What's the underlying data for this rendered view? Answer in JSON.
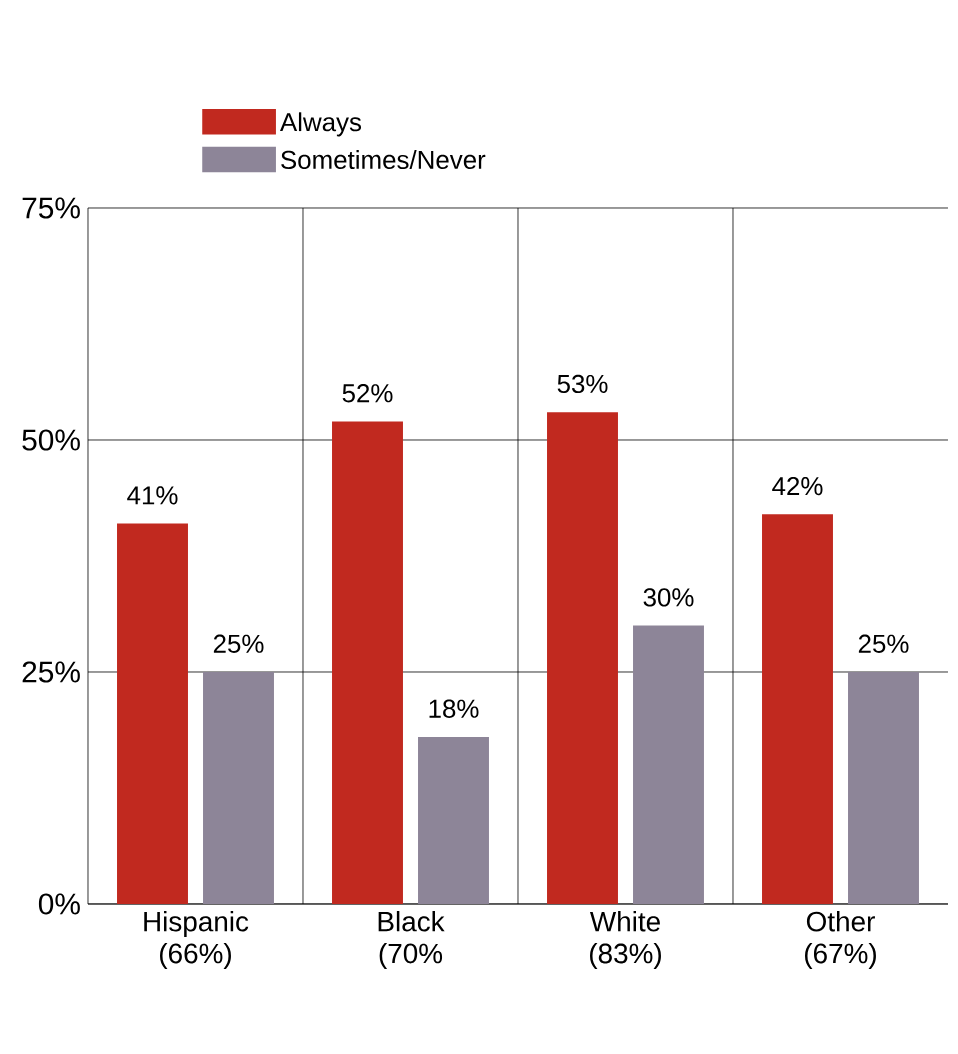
{
  "chart_data": {
    "type": "bar",
    "categories": [
      "Hispanic (66%)",
      "Black (70%",
      "White (83%)",
      "Other (67%)"
    ],
    "series": [
      {
        "name": "Always",
        "color": "#c1291f",
        "values": [
          41,
          52,
          53,
          42
        ],
        "value_labels": [
          "41%",
          "52%",
          "53%",
          "42%"
        ]
      },
      {
        "name": "Sometimes/Never",
        "color": "#8d8598",
        "values": [
          25,
          18,
          30,
          25
        ],
        "value_labels": [
          "25%",
          "18%",
          "30%",
          "25%"
        ]
      }
    ],
    "ylim": [
      0,
      75
    ],
    "yticks": [
      {
        "value": 0,
        "label": "0%"
      },
      {
        "value": 25,
        "label": "25%"
      },
      {
        "value": 50,
        "label": "50%"
      },
      {
        "value": 75,
        "label": "75%"
      }
    ],
    "grid": true,
    "legend": "top"
  }
}
